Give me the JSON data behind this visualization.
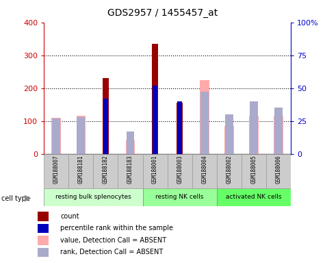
{
  "title": "GDS2957 / 1455457_at",
  "samples": [
    "GSM188007",
    "GSM188181",
    "GSM188182",
    "GSM188183",
    "GSM188001",
    "GSM188003",
    "GSM188004",
    "GSM188002",
    "GSM188005",
    "GSM188006"
  ],
  "groups": [
    {
      "label": "resting bulk splenocytes",
      "color": "#ccffcc",
      "start": 0,
      "end": 4
    },
    {
      "label": "resting NK cells",
      "color": "#99ff99",
      "start": 4,
      "end": 7
    },
    {
      "label": "activated NK cells",
      "color": "#66ff66",
      "start": 7,
      "end": 10
    }
  ],
  "count": [
    null,
    null,
    230,
    null,
    335,
    155,
    null,
    null,
    null,
    null
  ],
  "percentile_rank": [
    null,
    null,
    42,
    null,
    52,
    40,
    null,
    null,
    null,
    null
  ],
  "value_absent": [
    110,
    115,
    null,
    40,
    null,
    null,
    225,
    85,
    115,
    115
  ],
  "rank_absent": [
    27,
    28,
    null,
    17,
    null,
    null,
    47,
    30,
    40,
    35
  ],
  "ylim_left": [
    0,
    400
  ],
  "ylim_right": [
    0,
    100
  ],
  "yticks_left": [
    0,
    100,
    200,
    300,
    400
  ],
  "yticks_right": [
    0,
    25,
    50,
    75,
    100
  ],
  "yticklabels_right": [
    "0",
    "25",
    "50",
    "75",
    "100%"
  ],
  "count_color": "#990000",
  "percentile_color": "#0000bb",
  "value_absent_color": "#ffaaaa",
  "rank_absent_color": "#aaaacc",
  "left_axis_color": "#cc0000",
  "right_axis_color": "#0000cc",
  "grid_color": "#000000",
  "sample_box_color": "#cccccc",
  "sample_box_edge": "#999999"
}
